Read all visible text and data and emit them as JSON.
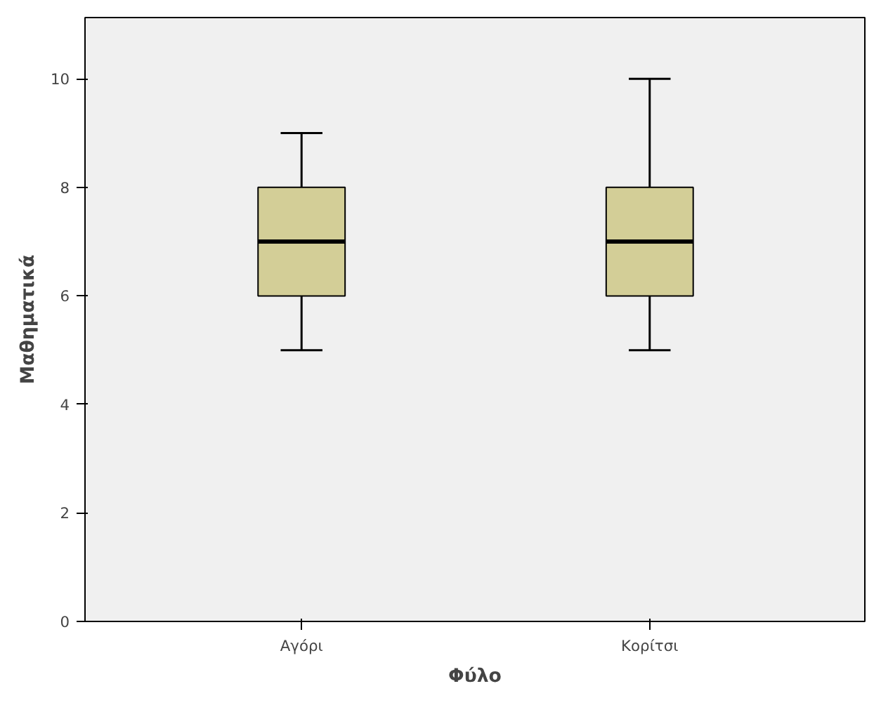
{
  "chart_data": {
    "type": "box",
    "xlabel": "Φύλο",
    "ylabel": "Μαθηματικά",
    "categories": [
      "Αγόρι",
      "Κορίτσι"
    ],
    "boxes": [
      {
        "low": 5,
        "q1": 6,
        "median": 7,
        "q3": 8,
        "high": 9
      },
      {
        "low": 5,
        "q1": 6,
        "median": 7,
        "q3": 8,
        "high": 10
      }
    ],
    "color": "#d3ce97",
    "ylim": [
      0,
      11.13
    ],
    "yticks": [
      0,
      2,
      4,
      6,
      8,
      10
    ],
    "grid": false
  }
}
